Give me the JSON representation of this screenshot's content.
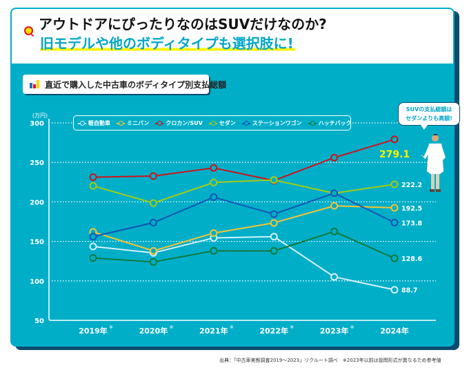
{
  "header": {
    "q_icon": "search-q-icon",
    "title_line1": "アウトドアにぴったりなのはSUVだけなのか?",
    "title_line2": "旧モデルや他のボディタイプも選択肢に!"
  },
  "subtitle": {
    "icon": "bar-chart-icon",
    "text": "直近で購入した中古車のボディタイプ別支払総額"
  },
  "callout": {
    "line1": "SUVの支払総額は",
    "line2": "セダンよりも高額!"
  },
  "footer": {
    "source": "出典：「中古車実態調査2019～2023」リクルート調べ　※2023年以前は設問形式が異なるため参考値"
  },
  "colors": {
    "panel": "#00aec8",
    "shadow": "#0d4b6e",
    "highlight": "#fff200",
    "accent_title": "#00a6c8"
  },
  "chart_data": {
    "type": "line",
    "title": "直近で購入した中古車のボディタイプ別支払総額",
    "xlabel": "",
    "ylabel": "(万円)",
    "ylim": [
      50,
      300
    ],
    "yticks": [
      50,
      100,
      150,
      200,
      250,
      300
    ],
    "grid": true,
    "legend_position": "top",
    "categories": [
      "2019年",
      "2020年",
      "2021年",
      "2022年",
      "2023年",
      "2024年"
    ],
    "category_marks": [
      "※",
      "※",
      "※",
      "※",
      "※",
      ""
    ],
    "series": [
      {
        "name": "軽自動車",
        "color": "#d6f1fb",
        "values": [
          143.5,
          135.5,
          154.4,
          156.0,
          105.0,
          88.7
        ],
        "end_label": "88.7"
      },
      {
        "name": "ミニバン",
        "color": "#f7c431",
        "values": [
          162.0,
          138.0,
          160.5,
          173.4,
          195.0,
          192.5
        ],
        "end_label": "192.5"
      },
      {
        "name": "クロカン/SUV",
        "color": "#d0121b",
        "values": [
          231.3,
          232.7,
          243.0,
          227.0,
          256.0,
          279.1
        ],
        "end_label": "279.1",
        "highlight": true
      },
      {
        "name": "セダン",
        "color": "#a4cc12",
        "values": [
          220.2,
          198.5,
          224.6,
          227.8,
          211.0,
          222.2
        ],
        "end_label": "222.2"
      },
      {
        "name": "ステーションワゴン",
        "color": "#1456b4",
        "values": [
          156.0,
          173.7,
          206.0,
          184.5,
          211.0,
          173.8
        ],
        "end_label": "173.8"
      },
      {
        "name": "ハッチバック",
        "color": "#117a3c",
        "values": [
          129.0,
          124.0,
          138.0,
          138.0,
          162.5,
          128.6
        ],
        "end_label": "128.6"
      }
    ]
  }
}
